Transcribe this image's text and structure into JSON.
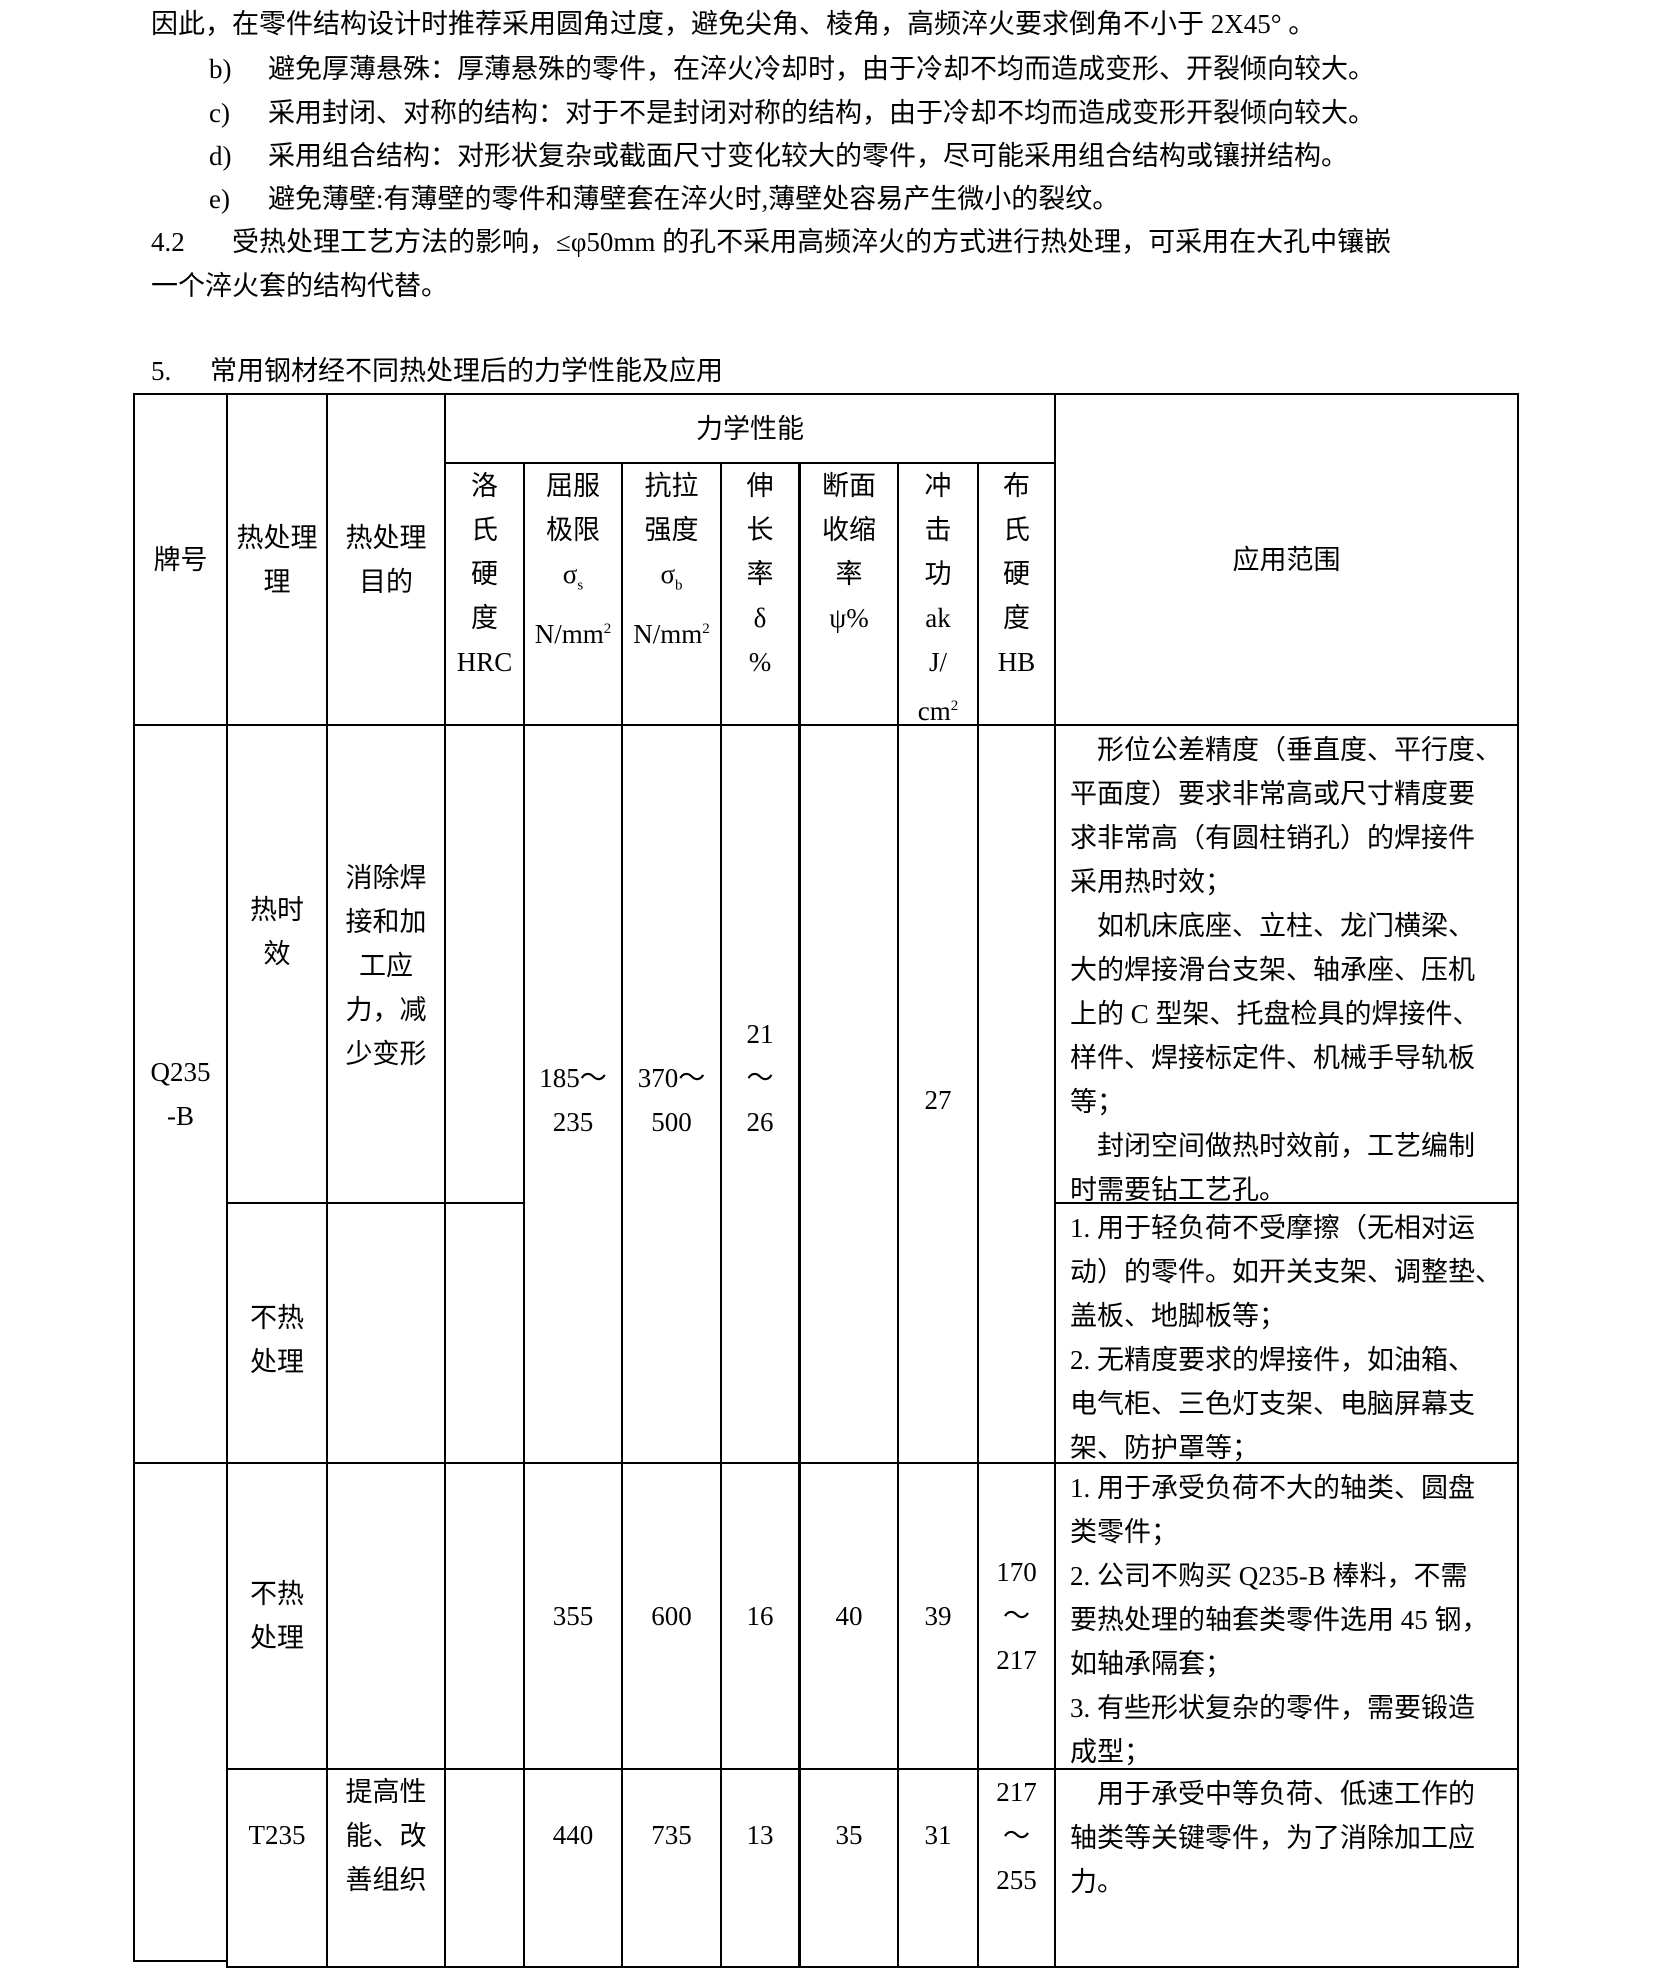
{
  "paragraphs": {
    "p0": "因此，在零件结构设计时推荐采用圆角过度，避免尖角、棱角，高频淬火要求倒角不小于 2X45°  。",
    "b_label": "b)",
    "b_text": "避免厚薄悬殊：厚薄悬殊的零件，在淬火冷却时，由于冷却不均而造成变形、开裂倾向较大。",
    "c_label": "c)",
    "c_text": "采用封闭、对称的结构：对于不是封闭对称的结构，由于冷却不均而造成变形开裂倾向较大。",
    "d_label": "d)",
    "d_text": "采用组合结构：对形状复杂或截面尺寸变化较大的零件，尽可能采用组合结构或镶拼结构。",
    "e_label": "e)",
    "e_text": "避免薄壁:有薄壁的零件和薄壁套在淬火时,薄壁处容易产生微小的裂纹。",
    "s42_num": "4.2",
    "s42_line1": "受热处理工艺方法的影响，≤φ50mm 的孔不采用高频淬火的方式进行热处理，可采用在大孔中镶嵌",
    "s42_line2": "一个淬火套的结构代替。"
  },
  "section": {
    "number": "5.",
    "title": "常用钢材经不同热处理后的力学性能及应用"
  },
  "table": {
    "headers": {
      "grade": "牌号",
      "treatment": "热处理\n理",
      "purpose": "热处理\n目的",
      "mech": "力学性能",
      "hrc": "洛\n氏\n硬\n度\nHRC",
      "yield_a": "屈服\n极限",
      "yield_sym": "σ",
      "yield_sub": "s",
      "yield_unit": "N/mm",
      "yield_sup": "2",
      "tensile_a": "抗拉\n强度",
      "tensile_sym": "σ",
      "tensile_sub": "b",
      "tensile_unit": "N/mm",
      "tensile_sup": "2",
      "elong": "伸\n长\n率\nδ\n%",
      "reduction": "断面\n收缩\n率\nψ%",
      "impact_a": "冲\n击\n功\nak\nJ/",
      "impact_unit": "cm",
      "impact_sup": "2",
      "hb": "布\n氏\n硬\n度\nHB",
      "app": "应用范围"
    },
    "rows": [
      {
        "grade": "Q235\n-B",
        "treatment": "热时\n效",
        "purpose": "消除焊\n接和加\n工应\n力，减\n少变形",
        "hrc": "",
        "yield": "185～\n235",
        "tensile": "370～\n500",
        "elong": "21\n～\n26",
        "reduction": "",
        "impact": "27",
        "hb": "",
        "app": "　形位公差精度（垂直度、平行度、\n平面度）要求非常高或尺寸精度要\n求非常高（有圆柱销孔）的焊接件\n采用热时效；\n　如机床底座、立柱、龙门横梁、\n大的焊接滑台支架、轴承座、压机\n上的 C 型架、托盘检具的焊接件、\n样件、焊接标定件、机械手导轨板\n等；\n　封闭空间做热时效前，工艺编制\n时需要钻工艺孔。"
      },
      {
        "treatment": "不热\n处理",
        "purpose": "",
        "hrc": "",
        "app": "1. 用于轻负荷不受摩擦（无相对运\n动）的零件。如开关支架、调整垫、\n盖板、地脚板等；\n2. 无精度要求的焊接件，如油箱、\n电气柜、三色灯支架、电脑屏幕支\n架、防护罩等；"
      },
      {
        "grade": "",
        "treatment": "不热\n处理",
        "purpose": "",
        "hrc": "",
        "yield": "355",
        "tensile": "600",
        "elong": "16",
        "reduction": "40",
        "impact": "39",
        "hb": "170\n～\n217",
        "app": "1. 用于承受负荷不大的轴类、圆盘\n类零件；\n2. 公司不购买 Q235-B 棒料，不需\n要热处理的轴套类零件选用 45 钢，\n如轴承隔套；\n3. 有些形状复杂的零件，需要锻造\n成型；"
      },
      {
        "treatment": "T235",
        "purpose": "提高性\n能、改\n善组织",
        "hrc": "",
        "yield": "440",
        "tensile": "735",
        "elong": "13",
        "reduction": "35",
        "impact": "31",
        "hb": "217\n～\n255",
        "app": "　用于承受中等负荷、低速工作的\n轴类等关键零件，为了消除加工应\n力。"
      }
    ]
  }
}
